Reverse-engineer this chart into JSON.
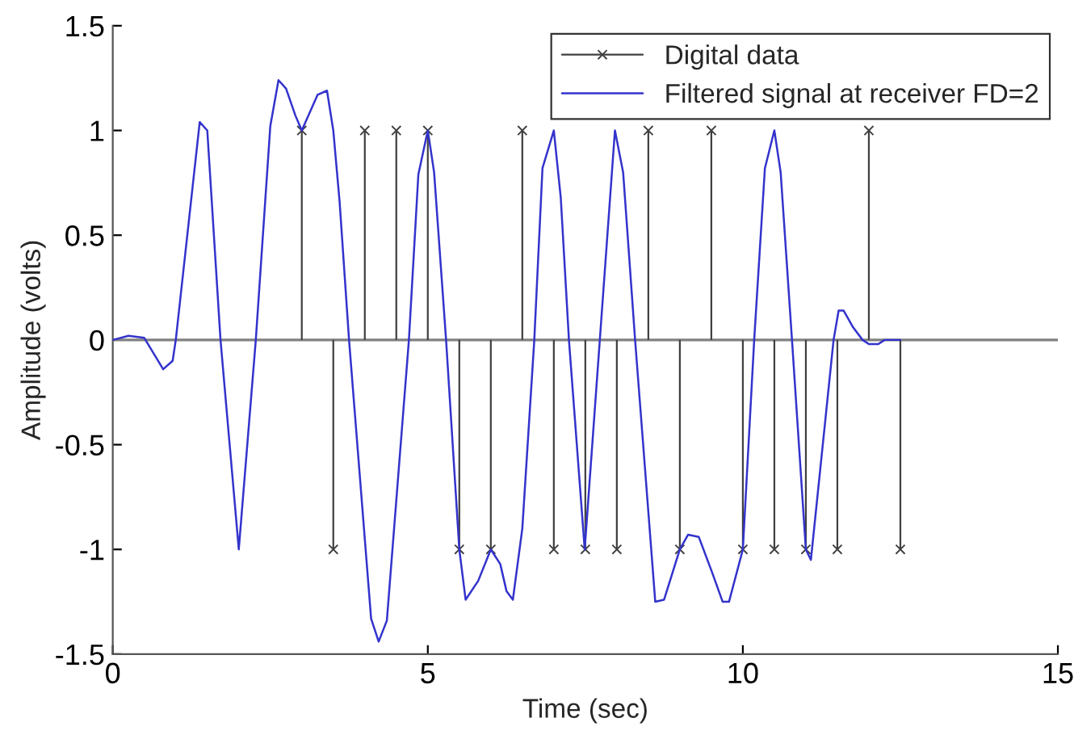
{
  "chart_data": {
    "type": "line",
    "xlabel": "Time (sec)",
    "ylabel": "Amplitude (volts)",
    "xlim": [
      0,
      15
    ],
    "ylim": [
      -1.5,
      1.5
    ],
    "xticks": [
      0,
      5,
      10,
      15
    ],
    "yticks": [
      -1.5,
      -1,
      -0.5,
      0,
      0.5,
      1,
      1.5
    ],
    "grid": false,
    "legend": "top right",
    "ref_lines": [
      {
        "axis": "y",
        "value": 0,
        "label": null,
        "color": "#808080"
      }
    ],
    "series": [
      {
        "name": "Digital data",
        "type": "lollipop",
        "color": "#404040",
        "marker": "cross",
        "x": [
          3,
          3.5,
          4,
          4.5,
          5,
          5.5,
          6,
          6.5,
          7,
          7.5,
          8,
          8.5,
          9,
          9.5,
          10,
          10.5,
          11,
          11.5,
          12,
          12.5
        ],
        "values": [
          1,
          -1,
          1,
          1,
          1,
          -1,
          -1,
          1,
          -1,
          -1,
          -1,
          1,
          -1,
          1,
          -1,
          -1,
          -1,
          -1,
          1,
          -1
        ]
      },
      {
        "name": "Filtered signal at receiver FD=2",
        "type": "line",
        "color": "#3333cc",
        "marker": "none",
        "line_style": "solid",
        "x": [
          0,
          0.25,
          0.5,
          0.8,
          0.95,
          1.0,
          1.38,
          1.5,
          1.71,
          2.0,
          2.27,
          2.5,
          2.63,
          2.75,
          2.9,
          3.0,
          3.25,
          3.4,
          3.5,
          3.6,
          3.75,
          4.1,
          4.22,
          4.35,
          4.7,
          4.85,
          5.0,
          5.1,
          5.29,
          5.5,
          5.6,
          5.8,
          6.0,
          6.15,
          6.25,
          6.35,
          6.5,
          6.69,
          6.82,
          7.0,
          7.11,
          7.24,
          7.49,
          7.73,
          7.97,
          8.1,
          8.29,
          8.61,
          8.75,
          9.0,
          9.13,
          9.3,
          9.5,
          9.68,
          9.78,
          10.0,
          10.18,
          10.35,
          10.5,
          10.6,
          10.78,
          11.0,
          11.08,
          11.44,
          11.52,
          11.6,
          11.75,
          11.9,
          12.0,
          12.15,
          12.25,
          12.5
        ],
        "values": [
          0,
          0.02,
          0.01,
          -0.14,
          -0.1,
          0,
          1.04,
          1.0,
          0,
          -1.0,
          0,
          1.02,
          1.24,
          1.2,
          1.07,
          1.0,
          1.17,
          1.19,
          1.0,
          0.66,
          0,
          -1.33,
          -1.44,
          -1.34,
          0,
          0.79,
          1.0,
          0.8,
          0,
          -1.0,
          -1.24,
          -1.15,
          -1.0,
          -1.07,
          -1.2,
          -1.24,
          -0.9,
          0,
          0.82,
          1.0,
          0.68,
          0,
          -1.0,
          0,
          1.0,
          0.8,
          0,
          -1.25,
          -1.24,
          -1.0,
          -0.93,
          -0.94,
          -1.1,
          -1.25,
          -1.25,
          -1.0,
          0,
          0.82,
          1.0,
          0.8,
          0,
          -1.0,
          -1.05,
          0,
          0.14,
          0.14,
          0.06,
          0,
          -0.02,
          -0.02,
          0,
          0
        ]
      }
    ]
  }
}
